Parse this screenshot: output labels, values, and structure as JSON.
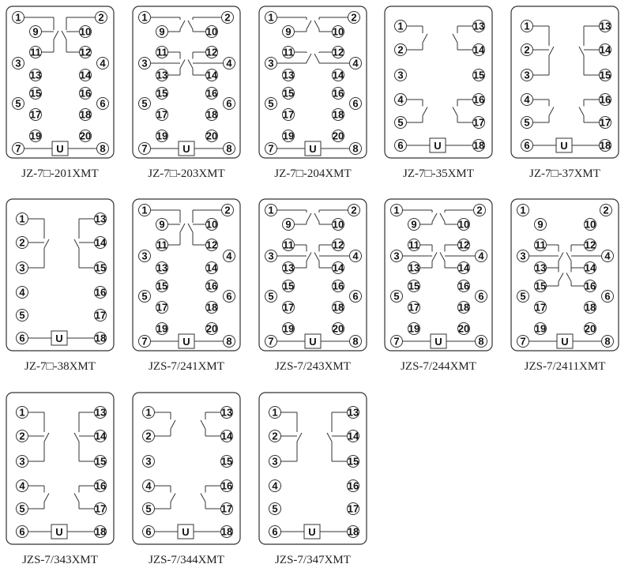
{
  "coil_label": "U",
  "panels": [
    {
      "caption": "JZ-7□-201XMT",
      "type": "20-pin",
      "contacts": [
        [
          "1",
          "9",
          "11"
        ],
        [
          "2",
          "10",
          "12"
        ]
      ]
    },
    {
      "caption": "JZ-7□-203XMT",
      "type": "20-pin",
      "contacts": [
        [
          "1",
          "9"
        ],
        [
          "2",
          "10"
        ],
        [
          "11",
          "3",
          "13"
        ],
        [
          "12",
          "4",
          "14"
        ]
      ]
    },
    {
      "caption": "JZ-7□-204XMT",
      "type": "20-pin",
      "contacts": [
        [
          "1",
          "9"
        ],
        [
          "2",
          "10"
        ],
        [
          "11",
          "3"
        ],
        [
          "12",
          "4"
        ]
      ]
    },
    {
      "caption": "JZ-7□-35XMT",
      "type": "18-pin",
      "contacts": [
        [
          "1",
          "2"
        ],
        [
          "13",
          "14"
        ],
        [
          "4",
          "5"
        ],
        [
          "16",
          "17"
        ]
      ]
    },
    {
      "caption": "JZ-7□-37XMT",
      "type": "18-pin",
      "contacts": [
        [
          "1",
          "2",
          "3"
        ],
        [
          "13",
          "14",
          "15"
        ],
        [
          "4",
          "5"
        ],
        [
          "16",
          "17"
        ]
      ]
    },
    {
      "caption": "JZ-7□-38XMT",
      "type": "18-pin",
      "contacts": [
        [
          "1",
          "2",
          "3"
        ],
        [
          "13",
          "14",
          "15"
        ]
      ]
    },
    {
      "caption": "JZS-7/241XMT",
      "type": "20-pin",
      "contacts": [
        [
          "1",
          "9",
          "11"
        ],
        [
          "2",
          "10",
          "12"
        ]
      ]
    },
    {
      "caption": "JZS-7/243XMT",
      "type": "20-pin",
      "contacts": [
        [
          "1",
          "9"
        ],
        [
          "2",
          "10"
        ],
        [
          "11",
          "3",
          "13"
        ],
        [
          "12",
          "4",
          "14"
        ]
      ]
    },
    {
      "caption": "JZS-7/244XMT",
      "type": "20-pin",
      "contacts": [
        [
          "1",
          "9"
        ],
        [
          "2",
          "10"
        ],
        [
          "11",
          "3",
          "13"
        ],
        [
          "12",
          "4",
          "14"
        ]
      ]
    },
    {
      "caption": "JZS-7/2411XMT",
      "type": "20-pin",
      "contacts": [
        [
          "11",
          "3",
          "13"
        ],
        [
          "12",
          "4",
          "14"
        ],
        [
          "13",
          "15"
        ],
        [
          "14",
          "16"
        ]
      ]
    },
    {
      "caption": "JZS-7/343XMT",
      "type": "18-pin",
      "contacts": [
        [
          "1",
          "2",
          "3"
        ],
        [
          "13",
          "14",
          "15"
        ],
        [
          "4",
          "5"
        ],
        [
          "16",
          "17"
        ]
      ]
    },
    {
      "caption": "JZS-7/344XMT",
      "type": "18-pin",
      "contacts": [
        [
          "1",
          "2"
        ],
        [
          "13",
          "14"
        ],
        [
          "4",
          "5"
        ],
        [
          "16",
          "17"
        ]
      ]
    },
    {
      "caption": "JZS-7/347XMT",
      "type": "18-pin",
      "contacts": [
        [
          "1",
          "2",
          "3"
        ],
        [
          "13",
          "14",
          "15"
        ]
      ]
    }
  ]
}
